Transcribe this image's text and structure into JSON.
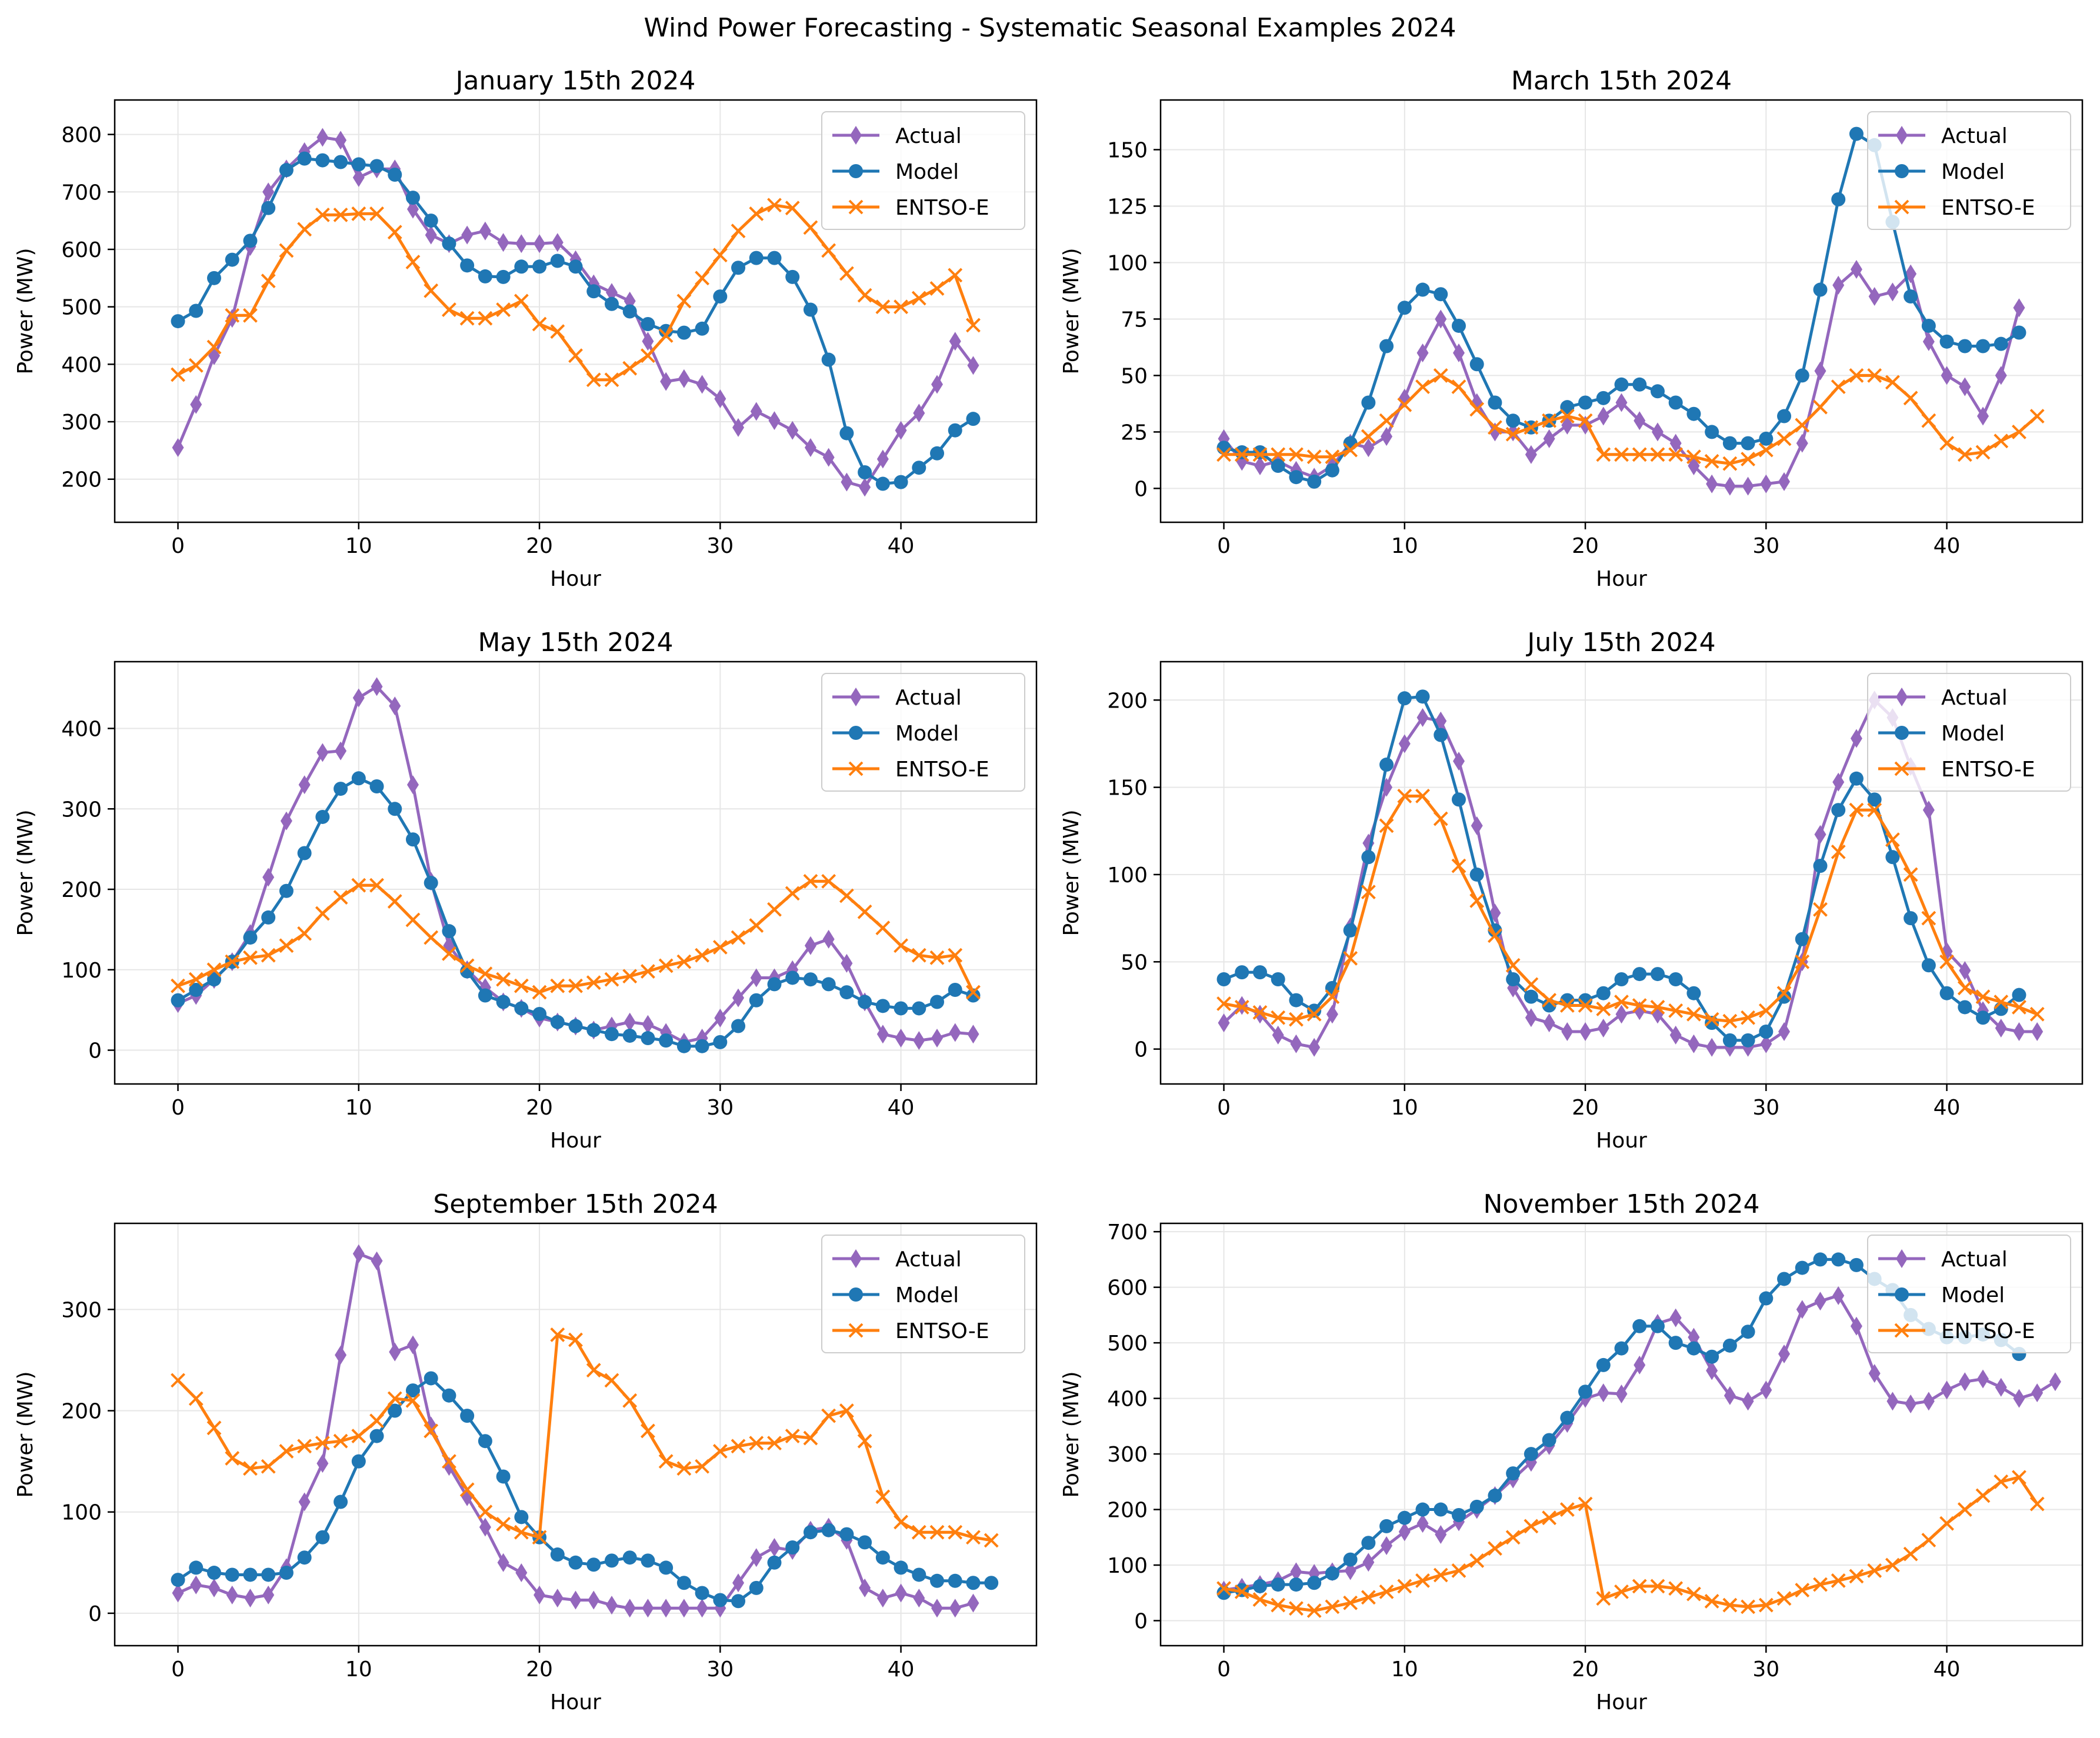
{
  "figure_title": "Wind Power Forecasting - Systematic Seasonal Examples 2024",
  "colors": {
    "actual": "#9467bd",
    "model": "#1f77b4",
    "entsoe": "#ff7f0e",
    "grid": "#e6e6e6"
  },
  "chart_data": [
    {
      "type": "line",
      "title": "January 15th 2024",
      "xlabel": "Hour",
      "ylabel": "Power (MW)",
      "xlim": [
        -3.5,
        47.5
      ],
      "ylim": [
        125,
        860
      ],
      "xticks": [
        0,
        10,
        20,
        30,
        40
      ],
      "yticks": [
        200,
        300,
        400,
        500,
        600,
        700,
        800
      ],
      "legend": [
        "Actual",
        "Model",
        "ENTSO-E"
      ],
      "legend_position": "top-right",
      "grid": true,
      "series": [
        {
          "name": "Actual",
          "marker": "diamond",
          "color": "#9467bd",
          "values": [
            255,
            330,
            415,
            480,
            605,
            700,
            740,
            770,
            795,
            790,
            725,
            740,
            740,
            670,
            625,
            610,
            625,
            632,
            612,
            610,
            610,
            612,
            582,
            540,
            525,
            510,
            440,
            370,
            375,
            365,
            340,
            290,
            318,
            302,
            285,
            255,
            238,
            195,
            186,
            235,
            285,
            315,
            365,
            440,
            398
          ]
        },
        {
          "name": "Model",
          "marker": "circle",
          "color": "#1f77b4",
          "values": [
            475,
            493,
            550,
            582,
            615,
            672,
            738,
            758,
            755,
            752,
            748,
            745,
            730,
            690,
            650,
            610,
            572,
            553,
            552,
            570,
            570,
            580,
            570,
            527,
            505,
            492,
            470,
            458,
            455,
            462,
            518,
            568,
            585,
            585,
            552,
            495,
            408,
            280,
            212,
            192,
            195,
            220,
            245,
            285,
            305
          ]
        },
        {
          "name": "ENTSO-E",
          "marker": "x",
          "color": "#ff7f0e",
          "values": [
            382,
            398,
            430,
            485,
            485,
            545,
            598,
            635,
            660,
            660,
            662,
            662,
            630,
            578,
            528,
            495,
            480,
            480,
            495,
            510,
            470,
            457,
            415,
            373,
            373,
            393,
            415,
            450,
            510,
            550,
            590,
            632,
            662,
            677,
            672,
            638,
            598,
            558,
            520,
            500,
            500,
            515,
            532,
            555,
            468
          ]
        }
      ]
    },
    {
      "type": "line",
      "title": "March 15th 2024",
      "xlabel": "Hour",
      "ylabel": "Power (MW)",
      "xlim": [
        -3.5,
        47.5
      ],
      "ylim": [
        -15,
        172
      ],
      "xticks": [
        0,
        10,
        20,
        30,
        40
      ],
      "yticks": [
        0,
        25,
        50,
        75,
        100,
        125,
        150
      ],
      "legend": [
        "Actual",
        "Model",
        "ENTSO-E"
      ],
      "legend_position": "top-right",
      "grid": true,
      "series": [
        {
          "name": "Actual",
          "marker": "diamond",
          "color": "#9467bd",
          "values": [
            22,
            12,
            10,
            12,
            8,
            5,
            10,
            20,
            18,
            23,
            40,
            60,
            75,
            60,
            38,
            25,
            25,
            15,
            22,
            28,
            28,
            32,
            38,
            30,
            25,
            20,
            10,
            2,
            1,
            1,
            2,
            3,
            20,
            52,
            90,
            97,
            85,
            87,
            95,
            65,
            50,
            45,
            32,
            50,
            80
          ]
        },
        {
          "name": "Model",
          "marker": "circle",
          "color": "#1f77b4",
          "values": [
            18,
            16,
            16,
            10,
            5,
            3,
            8,
            20,
            38,
            63,
            80,
            88,
            86,
            72,
            55,
            38,
            30,
            27,
            30,
            36,
            38,
            40,
            46,
            46,
            43,
            38,
            33,
            25,
            20,
            20,
            22,
            32,
            50,
            88,
            128,
            157,
            152,
            118,
            85,
            72,
            65,
            63,
            63,
            64,
            69
          ]
        },
        {
          "name": "ENTSO-E",
          "marker": "x",
          "color": "#ff7f0e",
          "values": [
            15,
            15,
            15,
            15,
            15,
            14,
            14,
            17,
            23,
            30,
            37,
            45,
            50,
            45,
            35,
            27,
            24,
            27,
            30,
            32,
            30,
            15,
            15,
            15,
            15,
            15,
            14,
            12,
            11,
            13,
            17,
            22,
            28,
            36,
            45,
            50,
            50,
            47,
            40,
            30,
            20,
            15,
            16,
            21,
            25,
            32
          ]
        }
      ]
    },
    {
      "type": "line",
      "title": "May 15th 2024",
      "xlabel": "Hour",
      "ylabel": "Power (MW)",
      "xlim": [
        -3.5,
        47.5
      ],
      "ylim": [
        -42,
        483
      ],
      "xticks": [
        0,
        10,
        20,
        30,
        40
      ],
      "yticks": [
        0,
        100,
        200,
        300,
        400
      ],
      "legend": [
        "Actual",
        "Model",
        "ENTSO-E"
      ],
      "legend_position": "top-right",
      "grid": true,
      "series": [
        {
          "name": "Actual",
          "marker": "diamond",
          "color": "#9467bd",
          "values": [
            58,
            68,
            88,
            110,
            145,
            215,
            285,
            330,
            370,
            372,
            438,
            452,
            428,
            330,
            210,
            130,
            100,
            78,
            60,
            52,
            40,
            35,
            30,
            25,
            30,
            35,
            32,
            22,
            10,
            15,
            40,
            65,
            90,
            90,
            100,
            130,
            138,
            108,
            60,
            20,
            15,
            12,
            15,
            22,
            20
          ]
        },
        {
          "name": "Model",
          "marker": "circle",
          "color": "#1f77b4",
          "values": [
            62,
            75,
            88,
            110,
            140,
            165,
            198,
            245,
            290,
            325,
            338,
            328,
            300,
            262,
            208,
            148,
            98,
            68,
            60,
            52,
            45,
            35,
            30,
            25,
            20,
            18,
            15,
            12,
            5,
            5,
            10,
            30,
            62,
            82,
            90,
            88,
            82,
            72,
            60,
            55,
            52,
            52,
            60,
            75,
            68
          ]
        },
        {
          "name": "ENTSO-E",
          "marker": "x",
          "color": "#ff7f0e",
          "values": [
            80,
            88,
            100,
            110,
            115,
            118,
            130,
            145,
            170,
            190,
            205,
            205,
            185,
            162,
            140,
            120,
            105,
            95,
            88,
            80,
            72,
            80,
            80,
            84,
            88,
            92,
            98,
            105,
            110,
            118,
            128,
            140,
            155,
            175,
            195,
            210,
            210,
            192,
            172,
            152,
            130,
            118,
            115,
            118,
            72
          ]
        }
      ]
    },
    {
      "type": "line",
      "title": "July 15th 2024",
      "xlabel": "Hour",
      "ylabel": "Power (MW)",
      "xlim": [
        -3.5,
        47.5
      ],
      "ylim": [
        -20,
        222
      ],
      "xticks": [
        0,
        10,
        20,
        30,
        40
      ],
      "yticks": [
        0,
        50,
        100,
        150,
        200
      ],
      "legend": [
        "Actual",
        "Model",
        "ENTSO-E"
      ],
      "legend_position": "top-right",
      "grid": true,
      "series": [
        {
          "name": "Actual",
          "marker": "diamond",
          "color": "#9467bd",
          "values": [
            15,
            25,
            20,
            8,
            3,
            1,
            20,
            70,
            118,
            150,
            175,
            190,
            188,
            165,
            128,
            78,
            35,
            18,
            15,
            10,
            10,
            12,
            20,
            22,
            20,
            8,
            3,
            1,
            1,
            1,
            3,
            10,
            50,
            123,
            153,
            178,
            200,
            190,
            162,
            137,
            56,
            45,
            22,
            12,
            10,
            10
          ]
        },
        {
          "name": "Model",
          "marker": "circle",
          "color": "#1f77b4",
          "values": [
            40,
            44,
            44,
            40,
            28,
            22,
            35,
            68,
            110,
            163,
            201,
            202,
            180,
            143,
            100,
            68,
            40,
            30,
            25,
            28,
            28,
            32,
            40,
            43,
            43,
            40,
            32,
            15,
            5,
            5,
            10,
            30,
            63,
            105,
            137,
            155,
            143,
            110,
            75,
            48,
            32,
            24,
            18,
            23,
            31
          ]
        },
        {
          "name": "ENTSO-E",
          "marker": "x",
          "color": "#ff7f0e",
          "values": [
            26,
            24,
            21,
            18,
            17,
            20,
            30,
            52,
            90,
            128,
            145,
            145,
            132,
            105,
            85,
            65,
            48,
            37,
            28,
            25,
            25,
            23,
            27,
            25,
            24,
            22,
            20,
            17,
            16,
            18,
            22,
            32,
            50,
            80,
            113,
            137,
            137,
            120,
            100,
            75,
            50,
            35,
            30,
            27,
            24,
            20
          ]
        }
      ]
    },
    {
      "type": "line",
      "title": "September 15th 2024",
      "xlabel": "Hour",
      "ylabel": "Power (MW)",
      "xlim": [
        -3.5,
        47.5
      ],
      "ylim": [
        -32,
        385
      ],
      "xticks": [
        0,
        10,
        20,
        30,
        40
      ],
      "yticks": [
        0,
        100,
        200,
        300
      ],
      "legend": [
        "Actual",
        "Model",
        "ENTSO-E"
      ],
      "legend_position": "top-right",
      "grid": true,
      "series": [
        {
          "name": "Actual",
          "marker": "diamond",
          "color": "#9467bd",
          "values": [
            20,
            28,
            25,
            18,
            15,
            18,
            45,
            110,
            148,
            255,
            355,
            348,
            258,
            265,
            185,
            145,
            115,
            85,
            50,
            40,
            18,
            15,
            13,
            13,
            8,
            5,
            5,
            5,
            5,
            5,
            5,
            30,
            55,
            65,
            62,
            82,
            85,
            72,
            25,
            15,
            20,
            15,
            5,
            5,
            10
          ]
        },
        {
          "name": "Model",
          "marker": "circle",
          "color": "#1f77b4",
          "values": [
            33,
            45,
            40,
            38,
            38,
            38,
            40,
            55,
            75,
            110,
            150,
            175,
            200,
            220,
            232,
            215,
            195,
            170,
            135,
            95,
            75,
            58,
            50,
            48,
            52,
            55,
            52,
            45,
            30,
            20,
            13,
            12,
            25,
            50,
            65,
            80,
            82,
            78,
            70,
            55,
            45,
            38,
            32,
            32,
            30,
            30
          ]
        },
        {
          "name": "ENTSO-E",
          "marker": "x",
          "color": "#ff7f0e",
          "values": [
            230,
            212,
            183,
            153,
            143,
            145,
            160,
            165,
            168,
            170,
            175,
            190,
            212,
            210,
            180,
            150,
            122,
            100,
            88,
            80,
            75,
            275,
            270,
            240,
            230,
            210,
            180,
            150,
            143,
            145,
            160,
            165,
            168,
            168,
            175,
            173,
            195,
            200,
            170,
            115,
            90,
            80,
            80,
            80,
            75,
            72
          ]
        }
      ]
    },
    {
      "type": "line",
      "title": "November 15th 2024",
      "xlabel": "Hour",
      "ylabel": "Power (MW)",
      "xlim": [
        -3.5,
        47.5
      ],
      "ylim": [
        -45,
        715
      ],
      "xticks": [
        0,
        10,
        20,
        30,
        40
      ],
      "yticks": [
        0,
        100,
        200,
        300,
        400,
        500,
        600,
        700
      ],
      "legend": [
        "Actual",
        "Model",
        "ENTSO-E"
      ],
      "legend_position": "top-right",
      "grid": true,
      "series": [
        {
          "name": "Actual",
          "marker": "diamond",
          "color": "#9467bd",
          "values": [
            55,
            60,
            65,
            72,
            88,
            85,
            88,
            90,
            105,
            135,
            160,
            175,
            155,
            178,
            200,
            225,
            255,
            285,
            315,
            355,
            400,
            410,
            408,
            460,
            535,
            545,
            510,
            450,
            405,
            395,
            415,
            480,
            560,
            575,
            585,
            530,
            445,
            395,
            390,
            395,
            415,
            430,
            435,
            420,
            400,
            410,
            430
          ]
        },
        {
          "name": "Model",
          "marker": "circle",
          "color": "#1f77b4",
          "values": [
            50,
            55,
            62,
            65,
            65,
            68,
            85,
            110,
            140,
            170,
            185,
            200,
            200,
            190,
            205,
            225,
            265,
            300,
            325,
            365,
            412,
            460,
            490,
            530,
            530,
            500,
            490,
            475,
            495,
            520,
            580,
            615,
            635,
            650,
            650,
            640,
            615,
            595,
            550,
            525,
            510,
            510,
            515,
            505,
            480
          ]
        },
        {
          "name": "ENTSO-E",
          "marker": "x",
          "color": "#ff7f0e",
          "values": [
            58,
            52,
            38,
            28,
            22,
            18,
            25,
            32,
            42,
            52,
            62,
            72,
            82,
            90,
            108,
            130,
            150,
            170,
            185,
            200,
            210,
            40,
            52,
            62,
            62,
            58,
            48,
            35,
            28,
            25,
            28,
            40,
            55,
            65,
            72,
            80,
            90,
            100,
            120,
            145,
            175,
            200,
            225,
            250,
            258,
            210
          ]
        }
      ]
    }
  ]
}
